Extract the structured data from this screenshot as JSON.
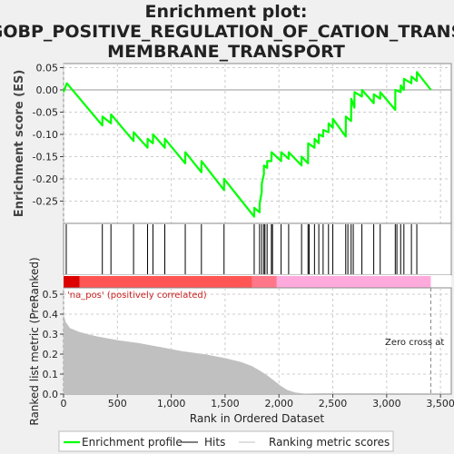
{
  "title_lines": [
    "Enrichment plot:",
    "GOBP_POSITIVE_REGULATION_OF_CATION_TRANS",
    "MEMBRANE_TRANSPORT"
  ],
  "colors": {
    "es_line": "#00ff00",
    "hits": "#000000",
    "metric_fill": "#c0c0c0",
    "band_pos_strong": "#dd0000",
    "band_pos": "#ff6666",
    "band_neg": "#ffaadd",
    "grid": "#cccccc",
    "background": "#ffffff",
    "figure_bg": "#f0f0f0"
  },
  "chart_data": {
    "type": "line",
    "title": "Enrichment plot: GOBP_POSITIVE_REGULATION_OF_CATION_TRANSMEMBRANE_TRANSPORT",
    "xlabel": "Rank in Ordered Dataset",
    "x_range": [
      0,
      3600
    ],
    "x_ticks": [
      0,
      500,
      1000,
      1500,
      2000,
      2500,
      3000,
      3500
    ],
    "x_tick_labels": [
      "0",
      "500",
      "1,000",
      "1,500",
      "2,000",
      "2,500",
      "3,000",
      "3,500"
    ],
    "es_panel": {
      "ylabel": "Enrichment score (ES)",
      "ylim": [
        -0.3,
        0.06
      ],
      "y_ticks": [
        0.05,
        0.0,
        -0.05,
        -0.1,
        -0.15,
        -0.2,
        -0.25
      ],
      "y_tick_labels": [
        "0.05",
        "0.00",
        "-0.05",
        "-0.10",
        "-0.15",
        "-0.20",
        "-0.25"
      ],
      "grid": true,
      "series": [
        {
          "name": "Enrichment profile",
          "x": [
            0,
            30,
            360,
            361,
            440,
            441,
            650,
            651,
            780,
            781,
            830,
            831,
            940,
            941,
            1130,
            1131,
            1280,
            1281,
            1490,
            1491,
            1770,
            1771,
            1820,
            1821,
            1840,
            1841,
            1860,
            1861,
            1890,
            1891,
            1930,
            1931,
            2020,
            2021,
            2090,
            2091,
            2210,
            2211,
            2270,
            2271,
            2330,
            2331,
            2370,
            2371,
            2410,
            2411,
            2460,
            2461,
            2500,
            2501,
            2620,
            2621,
            2670,
            2671,
            2700,
            2701,
            2770,
            2771,
            2880,
            2881,
            2940,
            2941,
            3080,
            3081,
            3130,
            3131,
            3160,
            3161,
            3230,
            3231,
            3280,
            3281,
            3410
          ],
          "y": [
            -0.005,
            0.015,
            -0.08,
            -0.06,
            -0.075,
            -0.055,
            -0.115,
            -0.095,
            -0.13,
            -0.11,
            -0.12,
            -0.1,
            -0.13,
            -0.11,
            -0.165,
            -0.14,
            -0.185,
            -0.16,
            -0.225,
            -0.2,
            -0.285,
            -0.265,
            -0.275,
            -0.255,
            -0.23,
            -0.21,
            -0.19,
            -0.17,
            -0.175,
            -0.16,
            -0.16,
            -0.14,
            -0.16,
            -0.14,
            -0.155,
            -0.14,
            -0.17,
            -0.15,
            -0.165,
            -0.12,
            -0.13,
            -0.11,
            -0.12,
            -0.1,
            -0.105,
            -0.09,
            -0.095,
            -0.075,
            -0.085,
            -0.065,
            -0.105,
            -0.06,
            -0.07,
            -0.02,
            -0.04,
            -0.005,
            -0.015,
            0.0,
            -0.03,
            -0.01,
            -0.02,
            -0.005,
            -0.045,
            0.0,
            -0.005,
            0.01,
            0.0,
            0.025,
            0.015,
            0.03,
            0.02,
            0.04,
            0.0
          ]
        }
      ]
    },
    "hits": [
      25,
      360,
      440,
      650,
      780,
      830,
      940,
      1130,
      1280,
      1490,
      1770,
      1820,
      1840,
      1860,
      1870,
      1890,
      1930,
      1940,
      2020,
      2090,
      2210,
      2270,
      2280,
      2330,
      2370,
      2410,
      2460,
      2500,
      2620,
      2640,
      2670,
      2690,
      2770,
      2880,
      2940,
      3080,
      3095,
      3130,
      3160,
      3230,
      3280
    ],
    "metric_panel": {
      "ylabel": "Ranked list metric (PreRanked)",
      "ylim": [
        0,
        0.5
      ],
      "y_ticks": [
        0.0,
        0.1,
        0.2,
        0.3,
        0.4,
        0.5
      ],
      "y_tick_labels": [
        "0.0",
        "0.1",
        "0.2",
        "0.3",
        "0.4",
        "0.5"
      ],
      "x": [
        0,
        20,
        60,
        150,
        300,
        500,
        700,
        900,
        1100,
        1300,
        1500,
        1650,
        1750,
        1830,
        1900,
        1960,
        2020,
        2080,
        2150,
        2250,
        2400,
        3000,
        3410
      ],
      "y": [
        0.4,
        0.36,
        0.33,
        0.31,
        0.29,
        0.27,
        0.255,
        0.235,
        0.215,
        0.2,
        0.18,
        0.16,
        0.14,
        0.115,
        0.09,
        0.065,
        0.04,
        0.02,
        0.008,
        0.002,
        0.0,
        0.0,
        0.0
      ]
    },
    "zero_cross_rank": 3410,
    "annotations": {
      "positive_label": "'na_pos' (positively correlated)",
      "zero_cross_label": "Zero cross at"
    },
    "legend": {
      "placement": "bottom",
      "items": [
        "Enrichment profile",
        "Hits",
        "Ranking metric scores"
      ]
    }
  }
}
